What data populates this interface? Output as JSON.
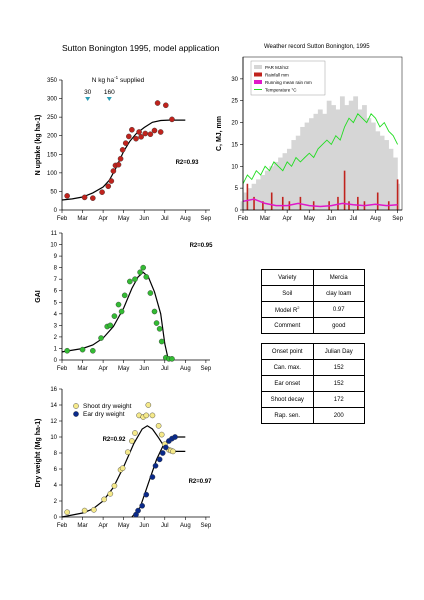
{
  "title": "Sutton Bonington 1995, model application",
  "weather_title": "Weather record Sutton Bonington, 1995",
  "months": [
    "Feb",
    "Mar",
    "Apr",
    "May",
    "Jun",
    "Jul",
    "Aug",
    "Sep"
  ],
  "n_supplied_label": "N kg ha",
  "n_supplied_sup": "-1",
  "n_supplied_suffix": " supplied",
  "n_marks": [
    {
      "label": "30",
      "month": 3.25
    },
    {
      "label": "160",
      "month": 4.3
    }
  ],
  "colors": {
    "n_uptake": "#c0231d",
    "gai": "#33bb33",
    "shoot": "#f5e98a",
    "ear": "#0a2a8a",
    "par": "#d6d6d6",
    "rain": "#c0231d",
    "running": "#e017c8",
    "temp": "#22dd22"
  },
  "table1": [
    [
      "Variety",
      "Mercia"
    ],
    [
      "Soil",
      "clay loam"
    ],
    [
      "Model R",
      "0.97"
    ],
    [
      "Comment",
      "good"
    ]
  ],
  "table2": [
    [
      "Onset point",
      "Julian Day"
    ],
    [
      "Can. max.",
      "152"
    ],
    [
      "Ear onset",
      "152"
    ],
    [
      "Shoot decay",
      "172"
    ],
    [
      "Rap. sen.",
      "200"
    ]
  ],
  "chart_data": [
    {
      "type": "scatter",
      "name": "n_uptake",
      "ylabel": "N uptake (kg ha-1)",
      "ylim": [
        0,
        350
      ],
      "yticks": [
        0,
        50,
        100,
        150,
        200,
        250,
        300,
        350
      ],
      "xlim": [
        2,
        9.2
      ],
      "r2": "R2=0.93",
      "observed": [
        [
          2.25,
          38
        ],
        [
          3.1,
          34
        ],
        [
          3.5,
          32
        ],
        [
          3.95,
          48
        ],
        [
          4.25,
          64
        ],
        [
          4.4,
          78
        ],
        [
          4.5,
          105
        ],
        [
          4.6,
          120
        ],
        [
          4.75,
          122
        ],
        [
          4.85,
          138
        ],
        [
          4.95,
          162
        ],
        [
          5.1,
          180
        ],
        [
          5.25,
          198
        ],
        [
          5.4,
          216
        ],
        [
          5.6,
          192
        ],
        [
          5.75,
          210
        ],
        [
          5.85,
          197
        ],
        [
          6.05,
          206
        ],
        [
          6.3,
          204
        ],
        [
          6.5,
          214
        ],
        [
          6.65,
          288
        ],
        [
          6.8,
          210
        ],
        [
          7.05,
          282
        ],
        [
          7.35,
          244
        ]
      ],
      "model": [
        [
          2,
          27
        ],
        [
          2.5,
          30
        ],
        [
          3,
          35
        ],
        [
          3.5,
          46
        ],
        [
          4,
          62
        ],
        [
          4.3,
          80
        ],
        [
          4.6,
          110
        ],
        [
          5,
          158
        ],
        [
          5.3,
          185
        ],
        [
          5.6,
          205
        ],
        [
          6,
          222
        ],
        [
          6.4,
          236
        ],
        [
          6.8,
          241
        ],
        [
          7.2,
          242
        ],
        [
          7.6,
          242
        ],
        [
          8.0,
          242
        ]
      ]
    },
    {
      "type": "line",
      "name": "weather",
      "ylabel": "C, MJ, mm",
      "ylim": [
        0,
        35
      ],
      "yticks": [
        0,
        5,
        10,
        15,
        20,
        25,
        30
      ],
      "xlim": [
        2,
        9.2
      ],
      "legend": [
        "PAR MJ/m2",
        "Rainfall mm",
        "Running mean rain mm",
        "Temperature °C"
      ],
      "par": [
        [
          2.0,
          2
        ],
        [
          2.1,
          4
        ],
        [
          2.2,
          1
        ],
        [
          2.3,
          5
        ],
        [
          2.4,
          3
        ],
        [
          2.5,
          6
        ],
        [
          2.6,
          2
        ],
        [
          2.7,
          7
        ],
        [
          2.8,
          4
        ],
        [
          2.9,
          8
        ],
        [
          3.0,
          3
        ],
        [
          3.1,
          9
        ],
        [
          3.2,
          5
        ],
        [
          3.3,
          10
        ],
        [
          3.4,
          4
        ],
        [
          3.5,
          11
        ],
        [
          3.6,
          6
        ],
        [
          3.7,
          12
        ],
        [
          3.8,
          5
        ],
        [
          3.9,
          13
        ],
        [
          4.0,
          7
        ],
        [
          4.1,
          14
        ],
        [
          4.2,
          8
        ],
        [
          4.3,
          16
        ],
        [
          4.4,
          6
        ],
        [
          4.5,
          17
        ],
        [
          4.6,
          9
        ],
        [
          4.7,
          19
        ],
        [
          4.8,
          8
        ],
        [
          4.9,
          20
        ],
        [
          5.0,
          10
        ],
        [
          5.1,
          21
        ],
        [
          5.2,
          12
        ],
        [
          5.3,
          22
        ],
        [
          5.4,
          9
        ],
        [
          5.5,
          23
        ],
        [
          5.6,
          14
        ],
        [
          5.7,
          22
        ],
        [
          5.8,
          11
        ],
        [
          5.9,
          25
        ],
        [
          6.0,
          13
        ],
        [
          6.1,
          24
        ],
        [
          6.2,
          15
        ],
        [
          6.3,
          23
        ],
        [
          6.4,
          12
        ],
        [
          6.5,
          26
        ],
        [
          6.6,
          14
        ],
        [
          6.7,
          24
        ],
        [
          6.8,
          16
        ],
        [
          6.9,
          25
        ],
        [
          7.0,
          12
        ],
        [
          7.1,
          26
        ],
        [
          7.2,
          17
        ],
        [
          7.3,
          23
        ],
        [
          7.4,
          14
        ],
        [
          7.5,
          24
        ],
        [
          7.6,
          13
        ],
        [
          7.7,
          21
        ],
        [
          7.8,
          12
        ],
        [
          7.9,
          20
        ],
        [
          8.0,
          11
        ],
        [
          8.1,
          18
        ],
        [
          8.2,
          9
        ],
        [
          8.3,
          17
        ],
        [
          8.4,
          10
        ],
        [
          8.5,
          16
        ],
        [
          8.6,
          8
        ],
        [
          8.7,
          14
        ],
        [
          8.8,
          7
        ],
        [
          8.9,
          12
        ],
        [
          9.0,
          6
        ]
      ],
      "temperature": [
        [
          2.0,
          6
        ],
        [
          2.2,
          8
        ],
        [
          2.4,
          7
        ],
        [
          2.6,
          9
        ],
        [
          2.8,
          8
        ],
        [
          3.0,
          10
        ],
        [
          3.2,
          9
        ],
        [
          3.4,
          11
        ],
        [
          3.6,
          10
        ],
        [
          3.8,
          9
        ],
        [
          4.0,
          11
        ],
        [
          4.2,
          10
        ],
        [
          4.4,
          12
        ],
        [
          4.6,
          11
        ],
        [
          4.8,
          12
        ],
        [
          5.0,
          13
        ],
        [
          5.2,
          12
        ],
        [
          5.4,
          14
        ],
        [
          5.6,
          15
        ],
        [
          5.8,
          16
        ],
        [
          6.0,
          15
        ],
        [
          6.2,
          17
        ],
        [
          6.4,
          16
        ],
        [
          6.6,
          19
        ],
        [
          6.8,
          21
        ],
        [
          7.0,
          20
        ],
        [
          7.2,
          22
        ],
        [
          7.4,
          21
        ],
        [
          7.6,
          20
        ],
        [
          7.8,
          22
        ],
        [
          8.0,
          21
        ],
        [
          8.2,
          19
        ],
        [
          8.4,
          20
        ],
        [
          8.6,
          18
        ],
        [
          8.8,
          17
        ],
        [
          9.0,
          15
        ]
      ],
      "rainfall": [
        [
          2.2,
          6
        ],
        [
          2.5,
          3
        ],
        [
          2.9,
          2
        ],
        [
          3.3,
          4
        ],
        [
          3.8,
          3
        ],
        [
          4.1,
          2
        ],
        [
          4.6,
          3
        ],
        [
          5.2,
          2
        ],
        [
          5.9,
          2
        ],
        [
          6.3,
          3
        ],
        [
          6.6,
          9
        ],
        [
          6.8,
          2
        ],
        [
          7.2,
          3
        ],
        [
          7.5,
          2
        ],
        [
          8.1,
          4
        ],
        [
          8.6,
          2
        ],
        [
          9.0,
          7
        ]
      ],
      "running_mean": [
        [
          2.0,
          2
        ],
        [
          2.5,
          2.5
        ],
        [
          3.0,
          1.5
        ],
        [
          3.5,
          1
        ],
        [
          4.0,
          1
        ],
        [
          4.5,
          1.5
        ],
        [
          5.0,
          1
        ],
        [
          5.5,
          0.8
        ],
        [
          6.0,
          1
        ],
        [
          6.5,
          1.5
        ],
        [
          7.0,
          1.2
        ],
        [
          7.5,
          1
        ],
        [
          8.0,
          1.3
        ],
        [
          8.5,
          1
        ],
        [
          9.0,
          1.2
        ]
      ]
    },
    {
      "type": "scatter",
      "name": "gai",
      "ylabel": "GAI",
      "ylim": [
        0,
        11
      ],
      "yticks": [
        0,
        1,
        2,
        3,
        4,
        5,
        6,
        7,
        8,
        9,
        10,
        11
      ],
      "xlim": [
        2,
        9.2
      ],
      "r2": "R2=0.95",
      "observed": [
        [
          2.25,
          0.8
        ],
        [
          3.0,
          0.9
        ],
        [
          3.5,
          0.8
        ],
        [
          3.9,
          1.9
        ],
        [
          4.2,
          2.9
        ],
        [
          4.35,
          3.0
        ],
        [
          4.55,
          3.8
        ],
        [
          4.75,
          4.8
        ],
        [
          4.9,
          4.2
        ],
        [
          5.05,
          5.6
        ],
        [
          5.3,
          6.8
        ],
        [
          5.55,
          7.0
        ],
        [
          5.8,
          7.6
        ],
        [
          5.95,
          8.0
        ],
        [
          6.1,
          7.2
        ],
        [
          6.3,
          5.8
        ],
        [
          6.5,
          4.2
        ],
        [
          6.6,
          3.2
        ],
        [
          6.75,
          2.7
        ],
        [
          6.85,
          1.6
        ],
        [
          7.05,
          0.2
        ],
        [
          7.2,
          0.1
        ],
        [
          7.35,
          0.1
        ]
      ],
      "model": [
        [
          2,
          0.7
        ],
        [
          3,
          1.0
        ],
        [
          3.5,
          1.3
        ],
        [
          4,
          1.9
        ],
        [
          4.5,
          2.9
        ],
        [
          5,
          4.5
        ],
        [
          5.4,
          6.2
        ],
        [
          5.7,
          7.2
        ],
        [
          5.95,
          7.6
        ],
        [
          6.2,
          7.2
        ],
        [
          6.5,
          5.9
        ],
        [
          6.8,
          4.0
        ],
        [
          7.0,
          1.4
        ],
        [
          7.15,
          0.2
        ],
        [
          7.4,
          0.05
        ]
      ]
    },
    {
      "type": "scatter",
      "name": "dry_weight",
      "ylabel": "Dry weight (Mg ha-1)",
      "ylim": [
        0,
        16
      ],
      "yticks": [
        0,
        2,
        4,
        6,
        8,
        10,
        12,
        14,
        16
      ],
      "xlim": [
        2,
        9.2
      ],
      "legend": [
        "Shoot dry weight",
        "Ear dry weight"
      ],
      "r2_shoot": "R2=0.92",
      "r2_ear": "R2=0.97",
      "shoot_observed": [
        [
          2.25,
          0.6
        ],
        [
          3.1,
          0.8
        ],
        [
          3.55,
          0.9
        ],
        [
          4.05,
          2.2
        ],
        [
          4.35,
          2.9
        ],
        [
          4.55,
          3.9
        ],
        [
          4.85,
          5.9
        ],
        [
          4.95,
          6.1
        ],
        [
          5.2,
          8.1
        ],
        [
          5.4,
          9.5
        ],
        [
          5.55,
          10.5
        ],
        [
          5.75,
          12.7
        ],
        [
          5.95,
          12.5
        ],
        [
          6.1,
          12.7
        ],
        [
          6.2,
          14.0
        ],
        [
          6.4,
          12.7
        ],
        [
          6.7,
          11.4
        ],
        [
          6.85,
          10.3
        ],
        [
          7.0,
          9.1
        ],
        [
          7.2,
          8.4
        ],
        [
          7.3,
          8.3
        ],
        [
          7.4,
          8.2
        ]
      ],
      "ear_observed": [
        [
          5.6,
          0.3
        ],
        [
          5.7,
          0.8
        ],
        [
          5.9,
          1.4
        ],
        [
          6.1,
          2.8
        ],
        [
          6.4,
          5.0
        ],
        [
          6.55,
          6.4
        ],
        [
          6.75,
          7.2
        ],
        [
          6.9,
          8.0
        ],
        [
          7.05,
          8.7
        ],
        [
          7.2,
          9.5
        ],
        [
          7.35,
          9.8
        ],
        [
          7.5,
          10.0
        ]
      ],
      "shoot_model": [
        [
          2,
          0
        ],
        [
          3,
          0.5
        ],
        [
          3.5,
          1.0
        ],
        [
          4,
          2.0
        ],
        [
          4.5,
          3.7
        ],
        [
          5,
          6.3
        ],
        [
          5.5,
          9.2
        ],
        [
          5.9,
          11.0
        ],
        [
          6.15,
          11.4
        ],
        [
          6.4,
          11.0
        ],
        [
          6.7,
          9.9
        ],
        [
          7.0,
          8.7
        ],
        [
          7.3,
          8.2
        ],
        [
          8.0,
          8.2
        ]
      ],
      "ear_model": [
        [
          5.4,
          0
        ],
        [
          5.8,
          1.2
        ],
        [
          6.2,
          4.2
        ],
        [
          6.6,
          7.2
        ],
        [
          6.9,
          8.8
        ],
        [
          7.2,
          9.7
        ],
        [
          7.5,
          10.0
        ],
        [
          8.0,
          10.0
        ]
      ]
    }
  ]
}
